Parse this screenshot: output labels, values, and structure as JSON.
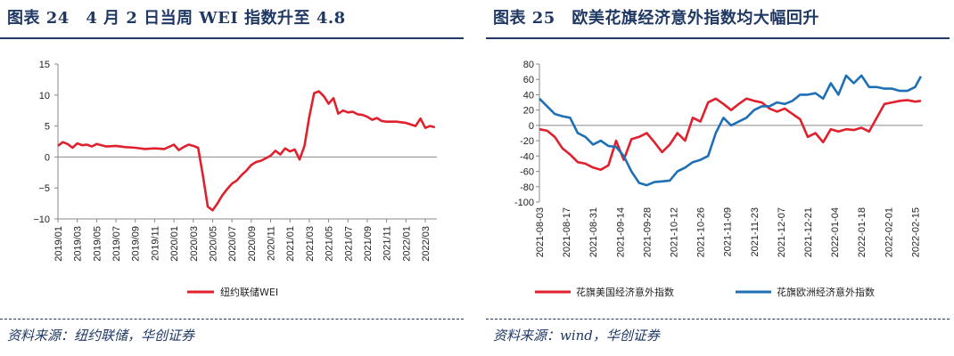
{
  "left": {
    "title": "图表 24　4 月 2 日当周 WEI 指数升至 4.8",
    "source": "资料来源：纽约联储，华创证券",
    "chart_data": {
      "type": "line",
      "title": "4 月 2 日当周 WEI 指数升至 4.8",
      "ylim": [
        -10,
        15
      ],
      "yticks": [
        "15",
        "10",
        "5",
        "0",
        "−5",
        "−10"
      ],
      "ytick_values": [
        15,
        10,
        5,
        0,
        -5,
        -10
      ],
      "xticks": [
        "2019/01",
        "2019/03",
        "2019/05",
        "2019/07",
        "2019/09",
        "2019/11",
        "2020/01",
        "2020/03",
        "2020/05",
        "2020/07",
        "2020/09",
        "2020/11",
        "2021/01",
        "2021/03",
        "2021/05",
        "2021/07",
        "2021/09",
        "2021/11",
        "2022/01",
        "2022/03"
      ],
      "x_range_months": [
        0,
        39.2
      ],
      "series": [
        {
          "name": "纽约联储WEI",
          "color": "#e0202c",
          "x_months": [
            0,
            0.5,
            1,
            1.5,
            2,
            2.5,
            3,
            3.5,
            4,
            5,
            6,
            7,
            8,
            9,
            10,
            11,
            12,
            12.5,
            13,
            13.5,
            14,
            14.5,
            15,
            15.5,
            16,
            16.5,
            17,
            17.5,
            18,
            18.5,
            19,
            19.5,
            20,
            20.5,
            21,
            22,
            22.5,
            23,
            23.5,
            24,
            24.5,
            25,
            25.5,
            26,
            26.5,
            27,
            27.5,
            28,
            28.5,
            29,
            29.5,
            30,
            30.5,
            31,
            31.5,
            32,
            32.5,
            33,
            33.5,
            34,
            35,
            36,
            37,
            37.5,
            38,
            38.5,
            39
          ],
          "values": [
            1.8,
            2.4,
            2.1,
            1.5,
            2.2,
            1.9,
            2.0,
            1.7,
            2.1,
            1.7,
            1.8,
            1.6,
            1.5,
            1.3,
            1.4,
            1.3,
            2.0,
            1.1,
            1.6,
            2.0,
            1.8,
            1.5,
            -3.0,
            -8.0,
            -8.6,
            -7.5,
            -6.2,
            -5.2,
            -4.3,
            -3.8,
            -2.9,
            -2.2,
            -1.3,
            -0.8,
            -0.6,
            0.2,
            1.0,
            0.4,
            1.4,
            0.9,
            1.2,
            -0.4,
            1.8,
            6.5,
            10.3,
            10.6,
            9.8,
            8.6,
            9.5,
            7.0,
            7.5,
            7.2,
            7.3,
            6.9,
            6.8,
            6.5,
            6.0,
            6.3,
            5.8,
            5.7,
            5.7,
            5.5,
            5.0,
            6.2,
            4.7,
            5.0,
            4.8
          ]
        }
      ],
      "legend": [
        "纽约联储WEI"
      ],
      "legend_position": "bottom-center"
    }
  },
  "right": {
    "title": "图表 25　欧美花旗经济意外指数均大幅回升",
    "source": "资料来源：wind，华创证券",
    "chart_data": {
      "type": "line",
      "title": "欧美花旗经济意外指数均大幅回升",
      "ylim": [
        -100,
        80
      ],
      "yticks": [
        "80",
        "60",
        "40",
        "20",
        "0",
        "-20",
        "-40",
        "-60",
        "-80",
        "-100"
      ],
      "ytick_values": [
        80,
        60,
        40,
        20,
        0,
        -20,
        -40,
        -60,
        -80,
        -100
      ],
      "xticks": [
        "2021-08-03",
        "2021-08-17",
        "2021-08-31",
        "2021-09-14",
        "2021-09-28",
        "2021-10-12",
        "2021-10-26",
        "2021-11-09",
        "2021-11-23",
        "2021-12-07",
        "2021-12-21",
        "2022-01-04",
        "2022-01-18",
        "2022-02-01",
        "2022-02-15"
      ],
      "x_range_days": [
        0,
        200
      ],
      "series": [
        {
          "name": "花旗美国经济意外指数",
          "color": "#e0202c",
          "x_days": [
            0,
            4,
            8,
            12,
            16,
            20,
            24,
            28,
            32,
            36,
            40,
            44,
            48,
            52,
            56,
            60,
            64,
            68,
            72,
            76,
            80,
            84,
            88,
            92,
            96,
            100,
            104,
            108,
            112,
            116,
            120,
            124,
            128,
            132,
            136,
            140,
            144,
            148,
            152,
            156,
            160,
            164,
            168,
            172,
            176,
            180,
            184,
            188,
            192,
            196,
            199
          ],
          "values": [
            -5,
            -7,
            -15,
            -30,
            -38,
            -48,
            -50,
            -55,
            -58,
            -52,
            -20,
            -45,
            -18,
            -15,
            -10,
            -22,
            -35,
            -25,
            -10,
            -20,
            10,
            5,
            30,
            35,
            28,
            20,
            28,
            35,
            32,
            30,
            22,
            18,
            22,
            15,
            8,
            -15,
            -10,
            -22,
            -5,
            -8,
            -5,
            -6,
            -3,
            -8,
            10,
            28,
            30,
            32,
            33,
            31,
            32
          ],
          "display_extent": "full"
        },
        {
          "name": "花旗欧洲经济意外指数",
          "color": "#1f6fb5",
          "x_days": [
            0,
            4,
            8,
            12,
            16,
            20,
            24,
            28,
            32,
            36,
            40,
            44,
            48,
            52,
            56,
            60,
            64,
            68,
            72,
            76,
            80,
            84,
            88,
            92,
            96,
            100,
            104,
            108,
            112,
            116,
            120,
            124,
            128,
            132,
            136,
            140,
            144,
            148,
            152,
            156,
            160,
            164,
            168,
            172,
            176,
            180,
            184,
            188,
            192,
            196,
            199
          ],
          "values": [
            35,
            25,
            15,
            12,
            10,
            -10,
            -15,
            -25,
            -20,
            -27,
            -28,
            -40,
            -60,
            -75,
            -78,
            -74,
            -73,
            -72,
            -60,
            -55,
            -48,
            -45,
            -40,
            -10,
            10,
            0,
            5,
            10,
            20,
            25,
            25,
            30,
            28,
            32,
            40,
            40,
            42,
            35,
            55,
            40,
            65,
            55,
            65,
            50,
            50,
            48,
            48,
            45,
            45,
            50,
            64
          ],
          "display_extent": "full"
        }
      ],
      "legend": [
        "花旗美国经济意外指数",
        "花旗欧洲经济意外指数"
      ],
      "legend_position": "bottom"
    }
  }
}
